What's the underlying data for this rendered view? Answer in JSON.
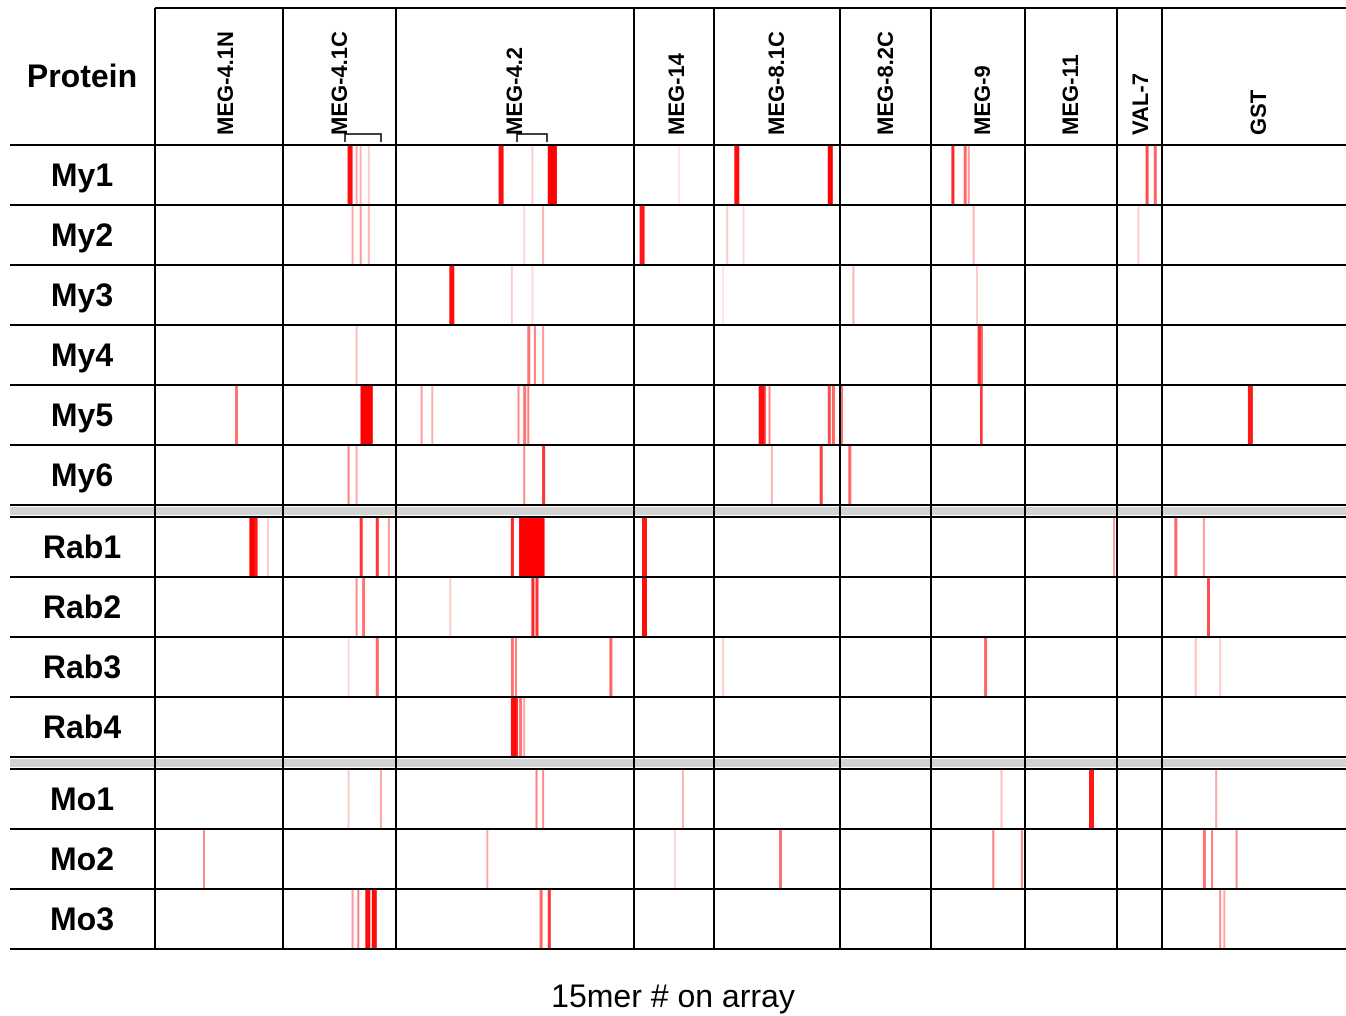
{
  "chart_data": {
    "type": "heatmap",
    "header_label": "Protein",
    "xlabel": "15mer # on array",
    "color_high": "#ff0000",
    "color_low": "#ffffff",
    "columns": [
      "MEG-4.1N",
      "MEG-4.1C",
      "MEG-4.2",
      "MEG-14",
      "MEG-8.1C",
      "MEG-8.2C",
      "MEG-9",
      "MEG-11",
      "VAL-7",
      "GST"
    ],
    "column_spans": [
      160,
      140,
      290,
      100,
      155,
      110,
      115,
      115,
      55,
      225
    ],
    "groups": [
      [
        "My1",
        "My2",
        "My3",
        "My4",
        "My5",
        "My6"
      ],
      [
        "Rab1",
        "Rab2",
        "Rab3",
        "Rab4"
      ],
      [
        "Mo1",
        "Mo2",
        "Mo3"
      ]
    ],
    "note": "Each series lists strong signals as [15mer #, relative intensity 0-1] along the concatenated array.",
    "series": [
      {
        "name": "My1",
        "signals": [
          [
            240,
            0.95
          ],
          [
            250,
            0.35
          ],
          [
            255,
            0.3
          ],
          [
            265,
            0.2
          ],
          [
            425,
            0.95
          ],
          [
            465,
            0.2
          ],
          [
            485,
            1.0
          ],
          [
            490,
            1.0
          ],
          [
            645,
            0.1
          ],
          [
            715,
            0.95
          ],
          [
            830,
            1.0
          ],
          [
            980,
            0.85
          ],
          [
            995,
            0.6
          ],
          [
            1000,
            0.4
          ],
          [
            1220,
            0.7
          ],
          [
            1230,
            0.6
          ]
        ]
      },
      {
        "name": "My2",
        "signals": [
          [
            245,
            0.35
          ],
          [
            255,
            0.4
          ],
          [
            265,
            0.3
          ],
          [
            455,
            0.15
          ],
          [
            478,
            0.3
          ],
          [
            597,
            0.9
          ],
          [
            705,
            0.2
          ],
          [
            725,
            0.15
          ],
          [
            1006,
            0.3
          ],
          [
            1210,
            0.2
          ]
        ]
      },
      {
        "name": "My3",
        "signals": [
          [
            365,
            0.95
          ],
          [
            440,
            0.2
          ],
          [
            465,
            0.15
          ],
          [
            700,
            0.1
          ],
          [
            860,
            0.3
          ],
          [
            1010,
            0.2
          ]
        ]
      },
      {
        "name": "My4",
        "signals": [
          [
            250,
            0.25
          ],
          [
            460,
            0.55
          ],
          [
            468,
            0.5
          ],
          [
            478,
            0.4
          ],
          [
            1012,
            0.8
          ],
          [
            1015,
            0.6
          ]
        ]
      },
      {
        "name": "My5",
        "signals": [
          [
            100,
            0.55
          ],
          [
            256,
            1.0
          ],
          [
            260,
            1.0
          ],
          [
            265,
            1.0
          ],
          [
            330,
            0.4
          ],
          [
            343,
            0.3
          ],
          [
            448,
            0.45
          ],
          [
            455,
            0.55
          ],
          [
            460,
            0.5
          ],
          [
            745,
            0.95
          ],
          [
            750,
            0.8
          ],
          [
            757,
            0.5
          ],
          [
            830,
            0.7
          ],
          [
            835,
            0.6
          ],
          [
            845,
            0.55
          ],
          [
            1015,
            0.55
          ],
          [
            1015,
            0.5
          ],
          [
            1345,
            0.9
          ]
        ]
      },
      {
        "name": "My6",
        "signals": [
          [
            240,
            0.5
          ],
          [
            250,
            0.35
          ],
          [
            455,
            0.45
          ],
          [
            478,
            0.8
          ],
          [
            760,
            0.3
          ],
          [
            820,
            0.75
          ],
          [
            855,
            0.6
          ]
        ]
      },
      {
        "name": "Rab1",
        "signals": [
          [
            118,
            1.0
          ],
          [
            122,
            0.9
          ],
          [
            140,
            0.2
          ],
          [
            255,
            0.8
          ],
          [
            275,
            0.8
          ],
          [
            290,
            0.4
          ],
          [
            440,
            0.85
          ],
          [
            450,
            1.0
          ],
          [
            455,
            1.0
          ],
          [
            460,
            1.0
          ],
          [
            465,
            1.0
          ],
          [
            470,
            1.0
          ],
          [
            475,
            1.0
          ],
          [
            600,
            0.9
          ],
          [
            1180,
            0.4
          ],
          [
            1255,
            0.6
          ],
          [
            1290,
            0.4
          ]
        ]
      },
      {
        "name": "Rab2",
        "signals": [
          [
            250,
            0.45
          ],
          [
            258,
            0.55
          ],
          [
            365,
            0.2
          ],
          [
            465,
            0.85
          ],
          [
            470,
            0.8
          ],
          [
            600,
            0.95
          ],
          [
            1295,
            0.7
          ]
        ]
      },
      {
        "name": "Rab3",
        "signals": [
          [
            240,
            0.15
          ],
          [
            275,
            0.6
          ],
          [
            440,
            0.55
          ],
          [
            445,
            0.5
          ],
          [
            560,
            0.6
          ],
          [
            700,
            0.2
          ],
          [
            1020,
            0.6
          ],
          [
            1280,
            0.25
          ],
          [
            1310,
            0.2
          ]
        ]
      },
      {
        "name": "Rab4",
        "signals": [
          [
            440,
            0.95
          ],
          [
            445,
            0.85
          ],
          [
            450,
            0.55
          ],
          [
            455,
            0.35
          ]
        ]
      },
      {
        "name": "Mo1",
        "signals": [
          [
            240,
            0.2
          ],
          [
            280,
            0.35
          ],
          [
            470,
            0.5
          ],
          [
            478,
            0.45
          ],
          [
            650,
            0.3
          ],
          [
            1040,
            0.25
          ],
          [
            1150,
            0.9
          ],
          [
            1305,
            0.35
          ]
        ]
      },
      {
        "name": "Mo2",
        "signals": [
          [
            60,
            0.45
          ],
          [
            410,
            0.35
          ],
          [
            640,
            0.15
          ],
          [
            770,
            0.55
          ],
          [
            1030,
            0.5
          ],
          [
            1065,
            0.45
          ],
          [
            1290,
            0.55
          ],
          [
            1300,
            0.5
          ],
          [
            1330,
            0.45
          ]
        ]
      },
      {
        "name": "Mo3",
        "signals": [
          [
            245,
            0.4
          ],
          [
            252,
            0.5
          ],
          [
            262,
            0.95
          ],
          [
            270,
            0.95
          ],
          [
            475,
            0.6
          ],
          [
            485,
            0.8
          ],
          [
            1310,
            0.45
          ],
          [
            1315,
            0.35
          ]
        ]
      }
    ]
  }
}
